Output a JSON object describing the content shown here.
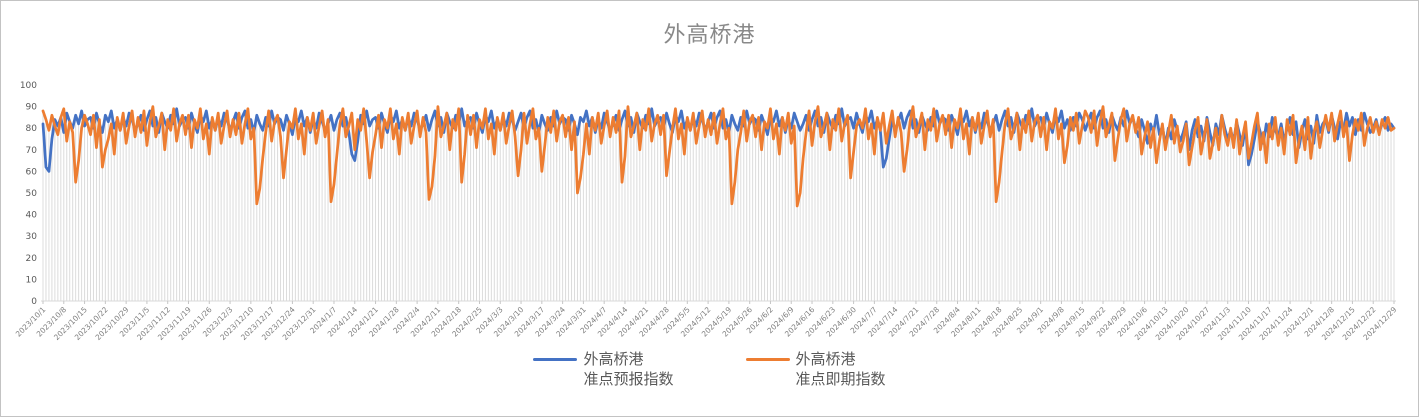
{
  "title": "外高桥港",
  "colors": {
    "series1": "#4472C4",
    "series2": "#ED7D31",
    "droplines": "#dcdcdc",
    "axis": "#d9d9d9",
    "tick": "#c6c6c6",
    "title_text": "#898989",
    "y_label_text": "#595959",
    "x_label_text": "#7f7f7f",
    "legend_text": "#595959"
  },
  "legend": {
    "items": [
      {
        "label_line1": "外高桥港",
        "label_line2": "准点预报指数",
        "color": "#4472C4"
      },
      {
        "label_line1": "外高桥港",
        "label_line2": "准点即期指数",
        "color": "#ED7D31"
      }
    ]
  },
  "chart_data": {
    "type": "line",
    "title": "外高桥港",
    "xlabel": "",
    "ylabel": "",
    "ylim": [
      0,
      100
    ],
    "y_ticks": [
      0,
      10,
      20,
      30,
      40,
      50,
      60,
      70,
      80,
      90,
      100
    ],
    "grid": "vertical-droplines-per-point",
    "legend_position": "bottom",
    "x_start_date": "2023/10/1",
    "x_end_date": "2024/12/29",
    "x_tick_interval_days": 7,
    "x_tick_labels": [
      "2023/10/1",
      "2023/10/8",
      "2023/10/15",
      "2023/10/22",
      "2023/10/29",
      "2023/11/5",
      "2023/11/12",
      "2023/11/19",
      "2023/11/26",
      "2023/12/3",
      "2023/12/10",
      "2023/12/17",
      "2023/12/24",
      "2023/12/31",
      "2024/1/7",
      "2024/1/14",
      "2024/1/21",
      "2024/1/28",
      "2024/2/4",
      "2024/2/11",
      "2024/2/18",
      "2024/2/25",
      "2024/3/3",
      "2024/3/10",
      "2024/3/17",
      "2024/3/24",
      "2024/3/31",
      "2024/4/7",
      "2024/4/14",
      "2024/4/21",
      "2024/4/28",
      "2024/5/5",
      "2024/5/12",
      "2024/5/19",
      "2024/5/26",
      "2024/6/2",
      "2024/6/9",
      "2024/6/16",
      "2024/6/23",
      "2024/6/30",
      "2024/7/7",
      "2024/7/14",
      "2024/7/21",
      "2024/7/28",
      "2024/8/4",
      "2024/8/11",
      "2024/8/18",
      "2024/8/25",
      "2024/9/1",
      "2024/9/8",
      "2024/9/15",
      "2024/9/22",
      "2024/9/29",
      "2024/10/6",
      "2024/10/13",
      "2024/10/20",
      "2024/10/27",
      "2024/11/3",
      "2024/11/10",
      "2024/11/17",
      "2024/11/24",
      "2024/12/1",
      "2024/12/8",
      "2024/12/15",
      "2024/12/22",
      "2024/12/29"
    ],
    "series": [
      {
        "name": "外高桥港 准点预报指数",
        "color": "#4472C4",
        "values": [
          82,
          62,
          60,
          75,
          84,
          81,
          85,
          78,
          87,
          83,
          80,
          86,
          82,
          88,
          81,
          84,
          85,
          80,
          87,
          82,
          78,
          86,
          83,
          88,
          80,
          84,
          79,
          85,
          81,
          87,
          84,
          79,
          82,
          86,
          79,
          84,
          88,
          81,
          85,
          78,
          87,
          83,
          80,
          86,
          82,
          89,
          81,
          84,
          85,
          80,
          87,
          82,
          78,
          86,
          83,
          88,
          80,
          84,
          79,
          85,
          81,
          87,
          84,
          79,
          83,
          87,
          80,
          85,
          88,
          80,
          84,
          78,
          86,
          82,
          79,
          85,
          81,
          88,
          82,
          85,
          84,
          79,
          86,
          82,
          77,
          85,
          83,
          88,
          81,
          85,
          78,
          84,
          80,
          87,
          83,
          79,
          82,
          86,
          79,
          84,
          87,
          81,
          85,
          78,
          68,
          65,
          74,
          86,
          82,
          88,
          81,
          84,
          85,
          80,
          87,
          82,
          78,
          86,
          83,
          88,
          80,
          84,
          79,
          85,
          81,
          87,
          84,
          79,
          82,
          86,
          79,
          84,
          88,
          81,
          85,
          78,
          87,
          83,
          80,
          86,
          82,
          89,
          81,
          84,
          85,
          80,
          87,
          82,
          78,
          86,
          83,
          88,
          80,
          84,
          79,
          85,
          81,
          87,
          84,
          79,
          83,
          87,
          80,
          85,
          88,
          80,
          84,
          78,
          86,
          82,
          79,
          85,
          81,
          88,
          82,
          85,
          84,
          79,
          86,
          82,
          77,
          85,
          83,
          88,
          81,
          85,
          78,
          84,
          80,
          87,
          83,
          79,
          82,
          86,
          79,
          84,
          88,
          81,
          85,
          78,
          87,
          83,
          80,
          86,
          82,
          89,
          81,
          84,
          85,
          80,
          87,
          82,
          78,
          86,
          83,
          88,
          80,
          84,
          79,
          85,
          81,
          87,
          84,
          79,
          83,
          87,
          80,
          85,
          88,
          80,
          84,
          78,
          86,
          82,
          79,
          85,
          81,
          88,
          82,
          85,
          84,
          79,
          86,
          82,
          77,
          85,
          83,
          88,
          81,
          85,
          78,
          84,
          80,
          87,
          83,
          79,
          82,
          86,
          79,
          84,
          88,
          81,
          85,
          78,
          87,
          83,
          80,
          86,
          82,
          89,
          81,
          84,
          85,
          80,
          87,
          82,
          78,
          86,
          83,
          88,
          80,
          84,
          79,
          62,
          66,
          75,
          84,
          79,
          83,
          87,
          80,
          85,
          88,
          80,
          84,
          78,
          86,
          82,
          79,
          85,
          81,
          88,
          82,
          85,
          84,
          79,
          86,
          82,
          77,
          85,
          83,
          88,
          81,
          85,
          78,
          84,
          80,
          87,
          83,
          79,
          82,
          86,
          79,
          84,
          88,
          81,
          85,
          78,
          87,
          83,
          80,
          86,
          82,
          89,
          81,
          84,
          85,
          80,
          87,
          82,
          78,
          86,
          83,
          88,
          80,
          84,
          79,
          85,
          81,
          87,
          84,
          79,
          83,
          87,
          80,
          85,
          88,
          80,
          84,
          78,
          86,
          82,
          79,
          85,
          81,
          88,
          82,
          85,
          80,
          76,
          84,
          79,
          73,
          82,
          78,
          86,
          77,
          81,
          72,
          80,
          75,
          84,
          79,
          74,
          78,
          83,
          70,
          79,
          84,
          76,
          81,
          74,
          85,
          78,
          72,
          82,
          77,
          86,
          80,
          75,
          79,
          74,
          83,
          77,
          72,
          81,
          63,
          68,
          75,
          83,
          78,
          73,
          82,
          76,
          85,
          79,
          76,
          82,
          74,
          80,
          85,
          77,
          83,
          71,
          79,
          84,
          75,
          81,
          73,
          86,
          78,
          82,
          84,
          78,
          86,
          80,
          75,
          83,
          79,
          87,
          81,
          85,
          77,
          84,
          79,
          87,
          82,
          78,
          80,
          84,
          78,
          82,
          85,
          79,
          82,
          80
        ]
      },
      {
        "name": "外高桥港 准点即期指数",
        "color": "#ED7D31",
        "values": [
          88,
          84,
          79,
          86,
          81,
          77,
          85,
          89,
          74,
          83,
          78,
          55,
          65,
          80,
          86,
          82,
          77,
          86,
          71,
          84,
          62,
          70,
          75,
          82,
          68,
          85,
          79,
          87,
          73,
          81,
          88,
          76,
          85,
          78,
          88,
          72,
          83,
          90,
          76,
          81,
          87,
          70,
          84,
          79,
          89,
          74,
          82,
          86,
          77,
          86,
          71,
          84,
          80,
          89,
          75,
          82,
          68,
          85,
          79,
          87,
          73,
          81,
          88,
          76,
          84,
          77,
          87,
          73,
          82,
          89,
          75,
          80,
          45,
          52,
          66,
          78,
          88,
          74,
          83,
          86,
          76,
          57,
          70,
          83,
          80,
          89,
          75,
          82,
          68,
          85,
          79,
          87,
          73,
          81,
          88,
          76,
          84,
          46,
          54,
          68,
          82,
          89,
          76,
          81,
          87,
          70,
          84,
          79,
          89,
          74,
          57,
          69,
          77,
          86,
          71,
          84,
          80,
          89,
          75,
          82,
          68,
          85,
          79,
          87,
          73,
          81,
          88,
          76,
          85,
          78,
          47,
          53,
          67,
          90,
          76,
          81,
          87,
          70,
          84,
          79,
          89,
          55,
          68,
          86,
          77,
          86,
          71,
          84,
          80,
          89,
          75,
          82,
          68,
          85,
          79,
          87,
          73,
          81,
          88,
          76,
          58,
          70,
          87,
          73,
          82,
          89,
          75,
          80,
          60,
          72,
          85,
          78,
          88,
          74,
          83,
          86,
          76,
          85,
          70,
          83,
          50,
          57,
          68,
          82,
          68,
          85,
          79,
          87,
          73,
          81,
          88,
          76,
          85,
          78,
          88,
          55,
          67,
          90,
          76,
          81,
          87,
          70,
          84,
          79,
          89,
          74,
          82,
          86,
          77,
          86,
          58,
          69,
          80,
          89,
          75,
          82,
          68,
          85,
          79,
          87,
          73,
          81,
          88,
          76,
          84,
          77,
          87,
          73,
          82,
          89,
          75,
          80,
          45,
          55,
          70,
          78,
          88,
          74,
          83,
          86,
          76,
          85,
          70,
          83,
          80,
          89,
          75,
          82,
          68,
          85,
          79,
          87,
          73,
          81,
          44,
          50,
          66,
          78,
          88,
          72,
          83,
          90,
          76,
          81,
          87,
          70,
          84,
          79,
          89,
          74,
          82,
          86,
          57,
          69,
          81,
          84,
          80,
          89,
          75,
          82,
          68,
          85,
          79,
          87,
          73,
          81,
          88,
          76,
          85,
          78,
          60,
          70,
          83,
          90,
          76,
          81,
          87,
          70,
          84,
          79,
          89,
          74,
          82,
          86,
          77,
          86,
          71,
          84,
          80,
          89,
          75,
          82,
          68,
          85,
          79,
          87,
          73,
          81,
          88,
          76,
          84,
          46,
          55,
          69,
          82,
          89,
          75,
          80,
          87,
          70,
          84,
          78,
          88,
          74,
          83,
          86,
          76,
          85,
          70,
          83,
          80,
          89,
          75,
          82,
          64,
          72,
          85,
          79,
          87,
          73,
          81,
          88,
          85,
          78,
          88,
          72,
          83,
          90,
          76,
          81,
          87,
          65,
          75,
          84,
          89,
          74,
          82,
          86,
          78,
          85,
          68,
          76,
          83,
          71,
          80,
          64,
          74,
          82,
          70,
          78,
          86,
          73,
          81,
          69,
          74,
          82,
          63,
          71,
          79,
          85,
          68,
          76,
          84,
          66,
          73,
          80,
          70,
          86,
          77,
          72,
          80,
          71,
          84,
          68,
          76,
          83,
          66,
          73,
          81,
          87,
          70,
          78,
          64,
          82,
          75,
          85,
          72,
          80,
          68,
          84,
          77,
          86,
          64,
          74,
          81,
          70,
          85,
          66,
          78,
          83,
          71,
          79,
          86,
          79,
          87,
          74,
          82,
          88,
          76,
          83,
          65,
          77,
          84,
          79,
          87,
          72,
          80,
          85,
          78,
          83,
          77,
          84,
          80,
          85,
          79,
          80
        ]
      }
    ]
  }
}
